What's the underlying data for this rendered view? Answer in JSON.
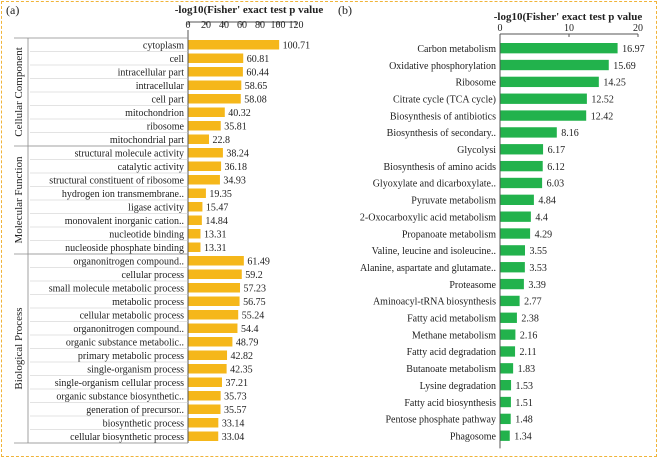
{
  "colors": {
    "left_bar": "#f5b71a",
    "right_bar": "#22b24c",
    "frame": "#f0b43a",
    "axis": "#555555",
    "text": "#222222"
  },
  "panels": {
    "a": {
      "label": "(a)"
    },
    "b": {
      "label": "(b)"
    }
  },
  "chart_data": [
    {
      "type": "bar",
      "orientation": "horizontal",
      "panel": "(a)",
      "title": "-log10(Fisher' exact test p value",
      "xlim": [
        0,
        120
      ],
      "xticks": [
        0,
        20,
        40,
        60,
        80,
        100,
        120
      ],
      "legend": "none",
      "groups": [
        {
          "name": "Cellular Component",
          "categories": [
            "cytoplasm",
            "cell",
            "intracellular part",
            "intracellular",
            "cell part",
            "mitochondrion",
            "ribosome",
            "mitochondrial part"
          ],
          "values": [
            100.71,
            60.81,
            60.44,
            58.65,
            58.08,
            40.32,
            35.81,
            22.8
          ],
          "labels": [
            "100.71",
            "60.81",
            "60.44",
            "58.65",
            "58.08",
            "40.32",
            "35.81",
            "22.8"
          ]
        },
        {
          "name": "Molecular Function",
          "categories": [
            "structural molecule activity",
            "catalytic activity",
            "structural constituent of ribosome",
            "hydrogen ion transmembrane..",
            "ligase activity",
            "monovalent inorganic cation..",
            "nucleotide binding",
            "nucleoside phosphate binding"
          ],
          "values": [
            38.24,
            36.18,
            34.93,
            19.35,
            15.47,
            14.84,
            13.31,
            13.31
          ],
          "labels": [
            "38.24",
            "36.18",
            "34.93",
            "19.35",
            "15.47",
            "14.84",
            "13.31",
            "13.31"
          ]
        },
        {
          "name": "Biological Process",
          "categories": [
            "organonitrogen compound..",
            "cellular process",
            "small molecule metabolic process",
            "metabolic process",
            "cellular metabolic process",
            "organonitrogen compound..",
            "organic substance metabolic..",
            "primary metabolic process",
            "single-organism process",
            "single-organism cellular process",
            "organic substance biosynthetic..",
            "generation of precursor..",
            "biosynthetic process",
            "cellular biosynthetic process"
          ],
          "values": [
            61.49,
            59.2,
            57.23,
            56.75,
            55.24,
            54.4,
            48.79,
            42.82,
            42.35,
            37.21,
            35.73,
            35.57,
            33.14,
            33.04
          ],
          "labels": [
            "61.49",
            "59.2",
            "57.23",
            "56.75",
            "55.24",
            "54.4",
            "48.79",
            "42.82",
            "42.35",
            "37.21",
            "35.73",
            "35.57",
            "33.14",
            "33.04"
          ]
        }
      ]
    },
    {
      "type": "bar",
      "orientation": "horizontal",
      "panel": "(b)",
      "title": "-log10(Fisher' exact test p value",
      "xlim": [
        0,
        20
      ],
      "xticks": [
        0,
        10,
        20
      ],
      "legend": "none",
      "categories": [
        "Carbon metabolism",
        "Oxidative phosphorylation",
        "Ribosome",
        "Citrate cycle (TCA cycle)",
        "Biosynthesis of antibiotics",
        "Biosynthesis of secondary..",
        "Glycolysi",
        "Biosynthesis of amino acids",
        "Glyoxylate and dicarboxylate..",
        "Pyruvate metabolism",
        "2-Oxocarboxylic acid metabolism",
        "Propanoate metabolism",
        "Valine, leucine and isoleucine..",
        "Alanine, aspartate and glutamate..",
        "Proteasome",
        "Aminoacyl-tRNA biosynthesis",
        "Fatty acid metabolism",
        "Methane metabolism",
        "Fatty acid degradation",
        "Butanoate metabolism",
        "Lysine degradation",
        "Fatty acid biosynthesis",
        "Pentose phosphate pathway",
        "Phagosome"
      ],
      "values": [
        16.97,
        15.69,
        14.25,
        12.52,
        12.42,
        8.16,
        6.17,
        6.12,
        6.03,
        4.84,
        4.4,
        4.29,
        3.55,
        3.53,
        3.39,
        2.77,
        2.38,
        2.16,
        2.11,
        1.83,
        1.53,
        1.51,
        1.48,
        1.34
      ],
      "labels": [
        "16.97",
        "15.69",
        "14.25",
        "12.52",
        "12.42",
        "8.16",
        "6.17",
        "6.12",
        "6.03",
        "4.84",
        "4.4",
        "4.29",
        "3.55",
        "3.53",
        "3.39",
        "2.77",
        "2.38",
        "2.16",
        "2.11",
        "1.83",
        "1.53",
        "1.51",
        "1.48",
        "1.34"
      ]
    }
  ]
}
